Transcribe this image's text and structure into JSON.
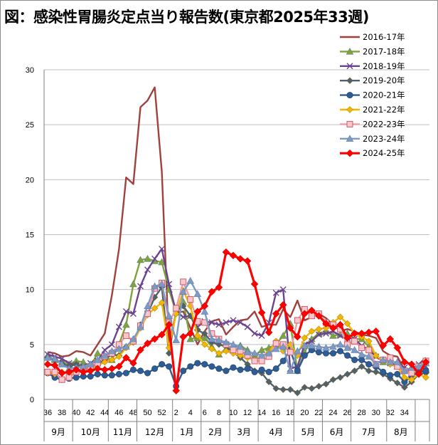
{
  "title": "図：感染性胃腸炎定点当り報告数(東京都2025年33週)",
  "chart_data": {
    "type": "line",
    "title": "図：感染性胃腸炎定点当り報告数(東京都2025年33週)",
    "ylim": [
      0,
      30
    ],
    "yticks": [
      0,
      5,
      10,
      15,
      20,
      25,
      30
    ],
    "grid": true,
    "legend": "top-right",
    "x_week_labels": [
      "36",
      "38",
      "40",
      "42",
      "44",
      "46",
      "48",
      "50",
      "52",
      "2",
      "4",
      "6",
      "8",
      "10",
      "12",
      "14",
      "16",
      "18",
      "20",
      "22",
      "24",
      "26",
      "28",
      "30",
      "32",
      "34"
    ],
    "months": [
      {
        "label": "9月",
        "start": 0,
        "end": 4
      },
      {
        "label": "10月",
        "start": 4,
        "end": 9
      },
      {
        "label": "11月",
        "start": 9,
        "end": 13
      },
      {
        "label": "12月",
        "start": 13,
        "end": 18
      },
      {
        "label": "1月",
        "start": 18,
        "end": 22
      },
      {
        "label": "2月",
        "start": 22,
        "end": 26
      },
      {
        "label": "3月",
        "start": 26,
        "end": 30
      },
      {
        "label": "4月",
        "start": 30,
        "end": 35
      },
      {
        "label": "5月",
        "start": 35,
        "end": 39
      },
      {
        "label": "6月",
        "start": 39,
        "end": 43
      },
      {
        "label": "7月",
        "start": 43,
        "end": 48
      },
      {
        "label": "8月",
        "start": 48,
        "end": 52
      }
    ],
    "series": [
      {
        "name": "2016-17年",
        "color": "#A0413E",
        "marker": "dash",
        "values": [
          4.3,
          4.2,
          3.9,
          4.0,
          4.4,
          4.3,
          4.0,
          5.0,
          6.0,
          9.5,
          13.7,
          20.2,
          19.6,
          26.6,
          27.2,
          28.4,
          20.7,
          5.0,
          7.9,
          8.0,
          6.5,
          5.0,
          6.2,
          7.1,
          7.3,
          5.9,
          6.6,
          7.2,
          7.3,
          8.0,
          6.6,
          6.8,
          6.8,
          8.2,
          7.5,
          9.0,
          7.2,
          7.5,
          7.8,
          7.4,
          6.8,
          6.2,
          6.4,
          6.2,
          5.9,
          5.8,
          5.6,
          4.4,
          4.0,
          3.9,
          2.7,
          2.8,
          3.2,
          3.8
        ]
      },
      {
        "name": "2017-18年",
        "color": "#7FA33A",
        "marker": "triangle",
        "values": [
          4.0,
          3.6,
          3.4,
          3.2,
          3.5,
          3.4,
          3.0,
          4.2,
          3.8,
          3.6,
          5.0,
          6.8,
          10.5,
          12.7,
          12.8,
          12.6,
          12.5,
          10.0,
          7.9,
          8.9,
          5.5,
          5.6,
          5.6,
          4.8,
          4.1,
          4.6,
          4.8,
          4.9,
          4.5,
          4.0,
          4.5,
          4.7,
          5.0,
          5.8,
          6.9,
          2.6,
          4.3,
          5.5,
          6.0,
          6.2,
          5.8,
          5.9,
          6.0,
          5.5,
          5.5,
          4.8,
          4.0,
          3.4,
          3.8,
          3.0,
          2.8,
          2.3,
          2.5,
          2.7
        ]
      },
      {
        "name": "2018-19年",
        "color": "#6B4490",
        "marker": "cross",
        "values": [
          4.1,
          3.9,
          3.7,
          3.3,
          3.1,
          3.0,
          3.3,
          3.5,
          4.5,
          5.0,
          6.6,
          8.0,
          7.8,
          10.3,
          11.8,
          12.8,
          13.7,
          10.5,
          8.0,
          7.5,
          7.6,
          6.6,
          7.1,
          7.0,
          6.8,
          7.0,
          7.2,
          7.0,
          6.6,
          6.0,
          5.8,
          7.0,
          9.7,
          10.0,
          2.8,
          3.0,
          5.0,
          5.3,
          5.9,
          6.0,
          6.2,
          5.8,
          5.6,
          5.5,
          4.9,
          4.5,
          3.9,
          3.6,
          3.3,
          3.1,
          2.9,
          2.6,
          3.2,
          3.0
        ]
      },
      {
        "name": "2019-20年",
        "color": "#4F6070",
        "marker": "diamond",
        "values": [
          3.8,
          3.6,
          3.3,
          3.0,
          3.2,
          3.0,
          2.8,
          3.2,
          3.6,
          4.1,
          4.0,
          4.8,
          5.2,
          6.8,
          7.8,
          9.3,
          10.2,
          4.2,
          8.0,
          8.5,
          7.6,
          6.3,
          6.0,
          5.2,
          5.0,
          4.8,
          4.3,
          3.8,
          3.2,
          2.6,
          2.4,
          1.6,
          1.0,
          0.9,
          0.9,
          0.6,
          1.1,
          1.0,
          1.2,
          1.4,
          1.8,
          2.0,
          2.3,
          2.6,
          3.0,
          2.6,
          2.5,
          2.3,
          1.9,
          1.5,
          1.1,
          1.6,
          2.3,
          2.4
        ]
      },
      {
        "name": "2020-21年",
        "color": "#2E5C94",
        "marker": "circle",
        "values": [
          2.4,
          2.0,
          1.8,
          1.9,
          2.0,
          2.1,
          2.1,
          2.3,
          2.2,
          2.2,
          2.3,
          2.4,
          2.7,
          2.6,
          2.4,
          2.8,
          3.2,
          3.0,
          1.2,
          2.6,
          3.0,
          3.3,
          3.2,
          3.0,
          2.8,
          2.6,
          2.9,
          2.7,
          2.8,
          2.5,
          2.7,
          2.5,
          2.8,
          3.5,
          4.5,
          2.6,
          4.0,
          4.5,
          4.3,
          4.2,
          4.2,
          4.4,
          4.0,
          3.6,
          3.6,
          3.2,
          3.0,
          2.5,
          2.2,
          2.3,
          1.6,
          2.1,
          2.5,
          2.6
        ]
      },
      {
        "name": "2021-22年",
        "color": "#F2B705",
        "marker": "diamond",
        "values": [
          2.4,
          2.3,
          2.5,
          2.4,
          2.5,
          2.6,
          2.8,
          3.1,
          3.4,
          3.6,
          3.9,
          4.7,
          5.2,
          6.5,
          7.7,
          8.3,
          8.8,
          4.7,
          7.8,
          9.9,
          8.5,
          5.8,
          5.0,
          4.6,
          4.2,
          4.4,
          4.2,
          4.0,
          3.8,
          3.6,
          3.9,
          4.3,
          5.3,
          4.4,
          5.0,
          4.0,
          5.6,
          6.2,
          6.4,
          6.5,
          7.0,
          7.5,
          6.9,
          6.0,
          5.7,
          5.3,
          4.0,
          3.5,
          3.2,
          3.0,
          2.0,
          1.8,
          2.3,
          2.0
        ]
      },
      {
        "name": "2022-23年",
        "color": "#E8A0A8",
        "marker": "square",
        "values": [
          2.5,
          2.5,
          1.8,
          2.0,
          2.5,
          2.8,
          3.0,
          3.3,
          3.9,
          4.2,
          5.0,
          5.8,
          5.3,
          6.7,
          7.8,
          10.1,
          10.6,
          7.0,
          8.3,
          10.7,
          9.1,
          7.1,
          7.0,
          6.0,
          5.5,
          5.0,
          4.5,
          4.4,
          4.0,
          3.5,
          3.5,
          3.9,
          5.1,
          5.0,
          4.3,
          7.2,
          8.2,
          7.6,
          7.8,
          7.0,
          6.8,
          6.4,
          5.0,
          5.3,
          4.7,
          4.5,
          3.2,
          3.6,
          3.8,
          3.0,
          2.6,
          2.4,
          3.0,
          3.5
        ]
      },
      {
        "name": "2023-24年",
        "color": "#7E9AC4",
        "marker": "triangle",
        "values": [
          3.8,
          3.7,
          3.2,
          2.8,
          2.9,
          3.0,
          3.2,
          3.6,
          4.0,
          4.4,
          4.6,
          4.8,
          5.5,
          6.6,
          8.5,
          10.3,
          10.5,
          7.6,
          5.4,
          9.8,
          10.8,
          9.6,
          8.0,
          5.5,
          5.4,
          5.2,
          5.0,
          4.8,
          4.3,
          4.2,
          4.0,
          4.2,
          4.6,
          4.8,
          2.6,
          4.4,
          4.9,
          4.9,
          4.8,
          4.7,
          4.8,
          5.0,
          4.7,
          4.5,
          4.1,
          3.9,
          3.2,
          3.6,
          3.4,
          3.4,
          2.6,
          2.9,
          3.0,
          3.3
        ]
      },
      {
        "name": "2024-25年",
        "color": "#FF0000",
        "marker": "diamond",
        "values": [
          3.2,
          3.1,
          2.4,
          2.5,
          2.7,
          2.5,
          2.6,
          2.8,
          2.7,
          2.8,
          3.0,
          3.8,
          3.3,
          4.5,
          5.1,
          5.5,
          5.9,
          6.8,
          0.8,
          5.7,
          6.0,
          8.0,
          8.5,
          9.8,
          10.2,
          13.4,
          13.1,
          12.8,
          12.6,
          10.5,
          7.9,
          6.1,
          7.8,
          8.6,
          6.5,
          5.7,
          7.8,
          8.1,
          7.6,
          6.9,
          6.5,
          6.8,
          5.6,
          6.0,
          6.0,
          6.1,
          6.2,
          4.9,
          5.5,
          4.7,
          3.4,
          3.2,
          2.3,
          3.4
        ]
      }
    ]
  }
}
